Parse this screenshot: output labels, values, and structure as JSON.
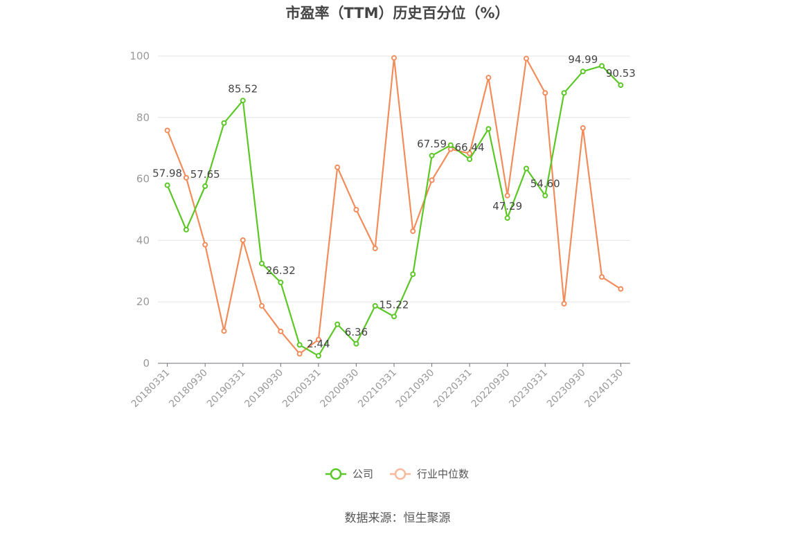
{
  "chart_data": {
    "type": "line",
    "title": "市盈率（TTM）历史百分位（%）",
    "source": "数据来源：恒生聚源",
    "ylim": [
      0,
      100
    ],
    "yticks": [
      0,
      20,
      40,
      60,
      80,
      100
    ],
    "grid": true,
    "legend_position": "bottom",
    "x": [
      "20180331",
      "20180630",
      "20180930",
      "20181231",
      "20190331",
      "20190630",
      "20190930",
      "20191231",
      "20200331",
      "20200630",
      "20200930",
      "20201231",
      "20210331",
      "20210630",
      "20210930",
      "20211231",
      "20220331",
      "20220630",
      "20220930",
      "20221231",
      "20230331",
      "20230630",
      "20230930",
      "20231231",
      "20240130"
    ],
    "xtick_labels": [
      "20180331",
      "20180930",
      "20190331",
      "20190930",
      "20200331",
      "20200930",
      "20210331",
      "20210930",
      "20220331",
      "20220930",
      "20230331",
      "20230930",
      "20240130"
    ],
    "series": [
      {
        "name": "公司",
        "color": "#5ac725",
        "values": [
          57.98,
          43.5,
          57.65,
          78.2,
          85.52,
          32.5,
          26.32,
          6.0,
          2.44,
          12.7,
          6.36,
          18.7,
          15.22,
          29.0,
          67.59,
          71.0,
          66.44,
          76.3,
          47.29,
          63.4,
          54.6,
          88.0,
          94.99,
          96.8,
          90.53
        ],
        "labels": {
          "0": "57.98",
          "2": "57.65",
          "4": "85.52",
          "6": "26.32",
          "8": "2.44",
          "10": "6.36",
          "12": "15.22",
          "14": "67.59",
          "16": "66.44",
          "18": "47.29",
          "20": "54.60",
          "22": "94.99",
          "24": "90.53"
        }
      },
      {
        "name": "行业中位数",
        "color": "#f28c5a",
        "values": [
          75.8,
          60.4,
          38.6,
          10.5,
          40.1,
          18.7,
          10.4,
          3.1,
          7.7,
          63.8,
          50.0,
          37.4,
          99.4,
          43.0,
          59.6,
          69.7,
          68.3,
          93.0,
          54.6,
          99.2,
          88.0,
          19.4,
          76.6,
          28.1,
          24.2
        ]
      }
    ]
  }
}
